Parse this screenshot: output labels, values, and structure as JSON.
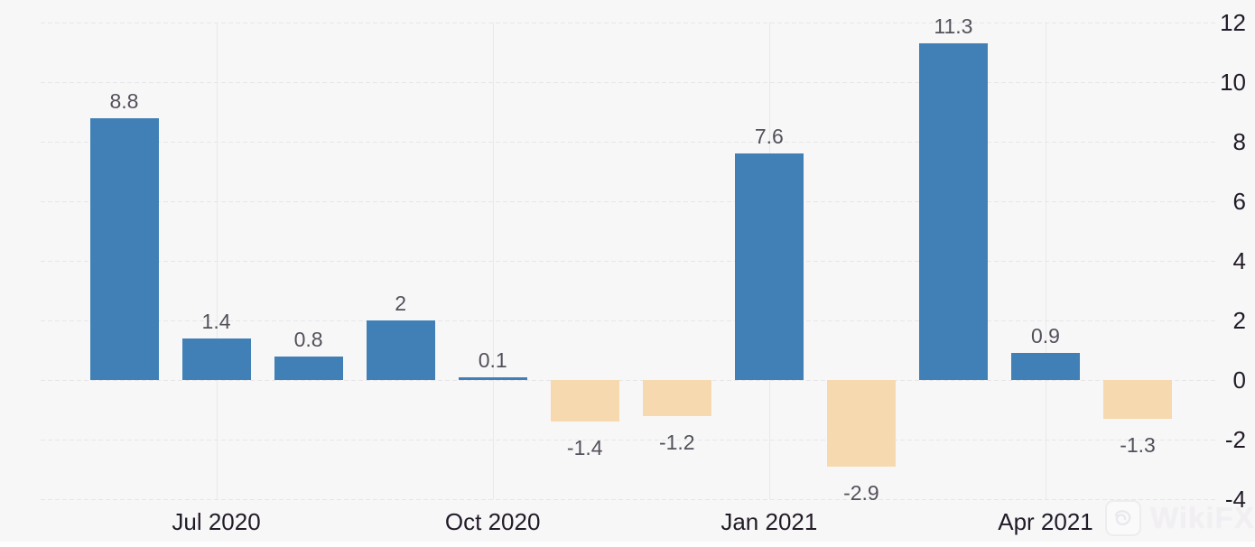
{
  "chart_data": {
    "type": "bar",
    "values": [
      8.8,
      1.4,
      0.8,
      2,
      0.1,
      -1.4,
      -1.2,
      7.6,
      -2.9,
      11.3,
      0.9,
      -1.3
    ],
    "value_labels": [
      "8.8",
      "1.4",
      "0.8",
      "2",
      "0.1",
      "-1.4",
      "-1.2",
      "7.6",
      "-2.9",
      "11.3",
      "0.9",
      "-1.3"
    ],
    "x_ticks": [
      {
        "label": "Jul 2020",
        "bar_index": 1
      },
      {
        "label": "Oct 2020",
        "bar_index": 4
      },
      {
        "label": "Jan 2021",
        "bar_index": 7
      },
      {
        "label": "Apr 2021",
        "bar_index": 10
      }
    ],
    "y_ticks": [
      12,
      10,
      8,
      6,
      4,
      2,
      0,
      -2,
      -4
    ],
    "ylim": [
      -4,
      12
    ],
    "grid": true,
    "legend": "none",
    "title": "",
    "xlabel": "",
    "ylabel": "",
    "colors": {
      "positive": "#4080b6",
      "negative": "#f6d9ae"
    }
  },
  "watermark": {
    "text": "WikiFX"
  }
}
